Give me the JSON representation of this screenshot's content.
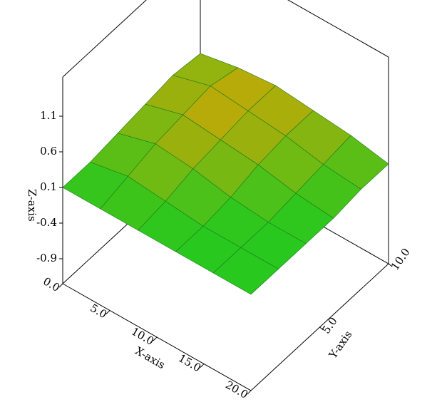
{
  "chart_data": {
    "type": "surface",
    "x_label": "X-axis",
    "y_label": "Y-axis",
    "z_label": "Z-axis",
    "x": [
      0,
      4,
      8,
      12,
      16,
      20
    ],
    "y": [
      0,
      2,
      4,
      6,
      8,
      10
    ],
    "z": [
      [
        0.1,
        0.1,
        0.1,
        0.1,
        0.1,
        0.1
      ],
      [
        0.1,
        0.2,
        0.15,
        0.1,
        0.1,
        0.1
      ],
      [
        0.15,
        0.3,
        0.25,
        0.15,
        0.1,
        0.1
      ],
      [
        0.2,
        0.35,
        0.3,
        0.25,
        0.15,
        0.1
      ],
      [
        0.25,
        0.4,
        0.35,
        0.3,
        0.2,
        0.15
      ],
      [
        0.2,
        0.3,
        0.35,
        0.3,
        0.25,
        0.15
      ]
    ],
    "xlim": [
      0,
      20
    ],
    "ylim": [
      0,
      10
    ],
    "zlim": [
      -1.25,
      1.65
    ],
    "xticks": [
      {
        "value": 0,
        "label": "0.0"
      },
      {
        "value": 5,
        "label": "5.0"
      },
      {
        "value": 10,
        "label": "10.0"
      },
      {
        "value": 15,
        "label": "15.0"
      },
      {
        "value": 20,
        "label": "20.0"
      }
    ],
    "yticks": [
      {
        "value": 5,
        "label": "5.0"
      },
      {
        "value": 10,
        "label": "10.0"
      }
    ],
    "zticks": [
      -0.9,
      -0.4,
      0.1,
      0.6,
      1.1
    ]
  }
}
